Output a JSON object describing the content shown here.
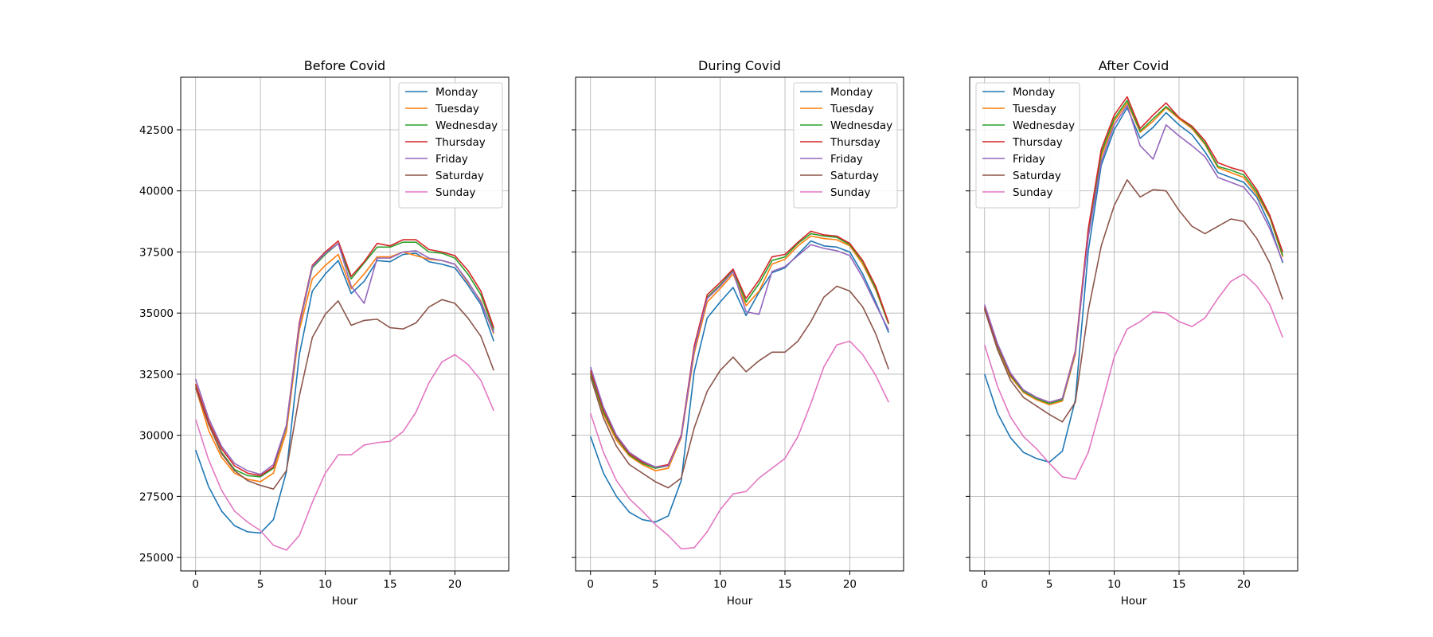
{
  "chart_data": [
    {
      "type": "line",
      "title": "Before Covid",
      "xlabel": "Hour",
      "ylabel": "",
      "xlim": [
        -1.15,
        24.15
      ],
      "ylim": [
        24450,
        44650
      ],
      "x_ticks": [
        0,
        5,
        10,
        15,
        20
      ],
      "y_ticks": [
        25000,
        27500,
        30000,
        32500,
        35000,
        37500,
        40000,
        42500
      ],
      "show_y_tick_labels": true,
      "grid": true,
      "legend_position": "upper right",
      "x": [
        0,
        1,
        2,
        3,
        4,
        5,
        6,
        7,
        8,
        9,
        10,
        11,
        12,
        13,
        14,
        15,
        16,
        17,
        18,
        19,
        20,
        21,
        22,
        23
      ],
      "series": [
        {
          "name": "Monday",
          "color": "#1f77b4",
          "values": [
            29400,
            27900,
            26900,
            26300,
            26050,
            26000,
            26550,
            28500,
            33300,
            35900,
            36600,
            37150,
            35800,
            36300,
            37150,
            37100,
            37400,
            37450,
            37100,
            37000,
            36850,
            36150,
            35350,
            33850
          ]
        },
        {
          "name": "Tuesday",
          "color": "#ff7f0e",
          "values": [
            31950,
            30200,
            29100,
            28450,
            28200,
            28100,
            28450,
            30150,
            34300,
            36400,
            36950,
            37400,
            36000,
            36600,
            37300,
            37300,
            37500,
            37350,
            37200,
            37150,
            37000,
            36250,
            35500,
            34150
          ]
        },
        {
          "name": "Wednesday",
          "color": "#2ca02c",
          "values": [
            32050,
            30450,
            29300,
            28600,
            28350,
            28300,
            28650,
            30350,
            34500,
            36850,
            37400,
            37850,
            36400,
            37050,
            37700,
            37700,
            37900,
            37900,
            37500,
            37450,
            37250,
            36600,
            35750,
            34300
          ]
        },
        {
          "name": "Thursday",
          "color": "#d62728",
          "values": [
            32100,
            30550,
            29450,
            28750,
            28450,
            28350,
            28700,
            30400,
            34600,
            36950,
            37500,
            37950,
            36500,
            37100,
            37850,
            37750,
            38000,
            38000,
            37600,
            37500,
            37350,
            36750,
            35900,
            34400
          ]
        },
        {
          "name": "Friday",
          "color": "#9467bd",
          "values": [
            32300,
            30700,
            29550,
            28850,
            28550,
            28400,
            28800,
            30400,
            34500,
            36900,
            37450,
            37850,
            36100,
            35400,
            37250,
            37250,
            37500,
            37550,
            37250,
            37150,
            37000,
            36300,
            35450,
            34200
          ]
        },
        {
          "name": "Saturday",
          "color": "#8c564b",
          "values": [
            31950,
            30450,
            29250,
            28550,
            28150,
            27950,
            27800,
            28550,
            31600,
            34000,
            34950,
            35500,
            34500,
            34700,
            34750,
            34400,
            34350,
            34600,
            35250,
            35550,
            35400,
            34800,
            34050,
            32650
          ]
        },
        {
          "name": "Sunday",
          "color": "#e377c2",
          "values": [
            30650,
            29000,
            27750,
            26900,
            26450,
            26100,
            25500,
            25300,
            25900,
            27250,
            28450,
            29200,
            29200,
            29600,
            29700,
            29750,
            30150,
            30950,
            32150,
            33000,
            33300,
            32900,
            32250,
            31000
          ]
        }
      ]
    },
    {
      "type": "line",
      "title": "During Covid",
      "xlabel": "Hour",
      "ylabel": "",
      "xlim": [
        -1.15,
        24.15
      ],
      "ylim": [
        24450,
        44650
      ],
      "x_ticks": [
        0,
        5,
        10,
        15,
        20
      ],
      "y_ticks": [
        25000,
        27500,
        30000,
        32500,
        35000,
        37500,
        40000,
        42500
      ],
      "show_y_tick_labels": false,
      "grid": true,
      "legend_position": "upper right",
      "x": [
        0,
        1,
        2,
        3,
        4,
        5,
        6,
        7,
        8,
        9,
        10,
        11,
        12,
        13,
        14,
        15,
        16,
        17,
        18,
        19,
        20,
        21,
        22,
        23
      ],
      "series": [
        {
          "name": "Monday",
          "color": "#1f77b4",
          "values": [
            29950,
            28450,
            27500,
            26850,
            26550,
            26450,
            26700,
            28150,
            32600,
            34800,
            35450,
            36050,
            34900,
            35850,
            36650,
            36850,
            37400,
            37950,
            37750,
            37700,
            37500,
            36600,
            35450,
            34200
          ]
        },
        {
          "name": "Tuesday",
          "color": "#ff7f0e",
          "values": [
            32450,
            30850,
            29800,
            29150,
            28800,
            28550,
            28650,
            29900,
            33350,
            35450,
            36000,
            36600,
            35300,
            35900,
            37000,
            37200,
            37750,
            38150,
            38050,
            38000,
            37750,
            37000,
            35950,
            34550
          ]
        },
        {
          "name": "Wednesday",
          "color": "#2ca02c",
          "values": [
            32550,
            30950,
            29900,
            29200,
            28850,
            28650,
            28750,
            30000,
            33500,
            35650,
            36150,
            36750,
            35450,
            36200,
            37150,
            37300,
            37850,
            38250,
            38150,
            38100,
            37800,
            37100,
            36000,
            34550
          ]
        },
        {
          "name": "Thursday",
          "color": "#d62728",
          "values": [
            32650,
            31050,
            29950,
            29250,
            28900,
            28700,
            28800,
            30000,
            33650,
            35750,
            36250,
            36800,
            35600,
            36350,
            37300,
            37400,
            37900,
            38350,
            38200,
            38150,
            37850,
            37150,
            36100,
            34600
          ]
        },
        {
          "name": "Friday",
          "color": "#9467bd",
          "values": [
            32800,
            31150,
            30000,
            29300,
            28950,
            28700,
            28750,
            29950,
            33500,
            35600,
            36100,
            36700,
            35050,
            34950,
            36700,
            36900,
            37350,
            37800,
            37650,
            37550,
            37350,
            36450,
            35350,
            34300
          ]
        },
        {
          "name": "Saturday",
          "color": "#8c564b",
          "values": [
            32400,
            30700,
            29550,
            28800,
            28450,
            28100,
            27850,
            28250,
            30300,
            31800,
            32650,
            33200,
            32600,
            33050,
            33400,
            33400,
            33850,
            34650,
            35650,
            36100,
            35900,
            35250,
            34150,
            32700
          ]
        },
        {
          "name": "Sunday",
          "color": "#e377c2",
          "values": [
            30900,
            29300,
            28150,
            27400,
            26900,
            26350,
            25900,
            25350,
            25400,
            26050,
            26950,
            27600,
            27700,
            28250,
            28650,
            29050,
            29950,
            31300,
            32800,
            33700,
            33850,
            33300,
            32450,
            31350
          ]
        }
      ]
    },
    {
      "type": "line",
      "title": "After Covid",
      "xlabel": "Hour",
      "ylabel": "",
      "xlim": [
        -1.15,
        24.15
      ],
      "ylim": [
        24450,
        44650
      ],
      "x_ticks": [
        0,
        5,
        10,
        15,
        20
      ],
      "y_ticks": [
        25000,
        27500,
        30000,
        32500,
        35000,
        37500,
        40000,
        42500
      ],
      "show_y_tick_labels": false,
      "grid": true,
      "legend_position": "upper left",
      "x": [
        0,
        1,
        2,
        3,
        4,
        5,
        6,
        7,
        8,
        9,
        10,
        11,
        12,
        13,
        14,
        15,
        16,
        17,
        18,
        19,
        20,
        21,
        22,
        23
      ],
      "series": [
        {
          "name": "Monday",
          "color": "#1f77b4",
          "values": [
            32500,
            30900,
            29900,
            29300,
            29050,
            28900,
            29350,
            31450,
            37550,
            41050,
            42500,
            43400,
            42150,
            42600,
            43200,
            42700,
            42300,
            41600,
            40750,
            40550,
            40350,
            39750,
            38600,
            37050
          ]
        },
        {
          "name": "Tuesday",
          "color": "#ff7f0e",
          "values": [
            35150,
            33600,
            32400,
            31750,
            31450,
            31250,
            31400,
            33300,
            38200,
            41400,
            42850,
            43600,
            42400,
            42850,
            43400,
            42950,
            42550,
            41900,
            40950,
            40750,
            40550,
            39850,
            38900,
            37300
          ]
        },
        {
          "name": "Wednesday",
          "color": "#2ca02c",
          "values": [
            35200,
            33650,
            32450,
            31800,
            31500,
            31300,
            31450,
            33400,
            38300,
            41550,
            42950,
            43700,
            42450,
            42950,
            43450,
            43000,
            42600,
            41950,
            41000,
            40850,
            40650,
            39950,
            38950,
            37350
          ]
        },
        {
          "name": "Thursday",
          "color": "#d62728",
          "values": [
            35250,
            33700,
            32500,
            31850,
            31550,
            31350,
            31500,
            33450,
            38450,
            41700,
            43100,
            43850,
            42550,
            43100,
            43600,
            43000,
            42650,
            42050,
            41150,
            40950,
            40800,
            40050,
            39000,
            37500
          ]
        },
        {
          "name": "Friday",
          "color": "#9467bd",
          "values": [
            35350,
            33750,
            32550,
            31850,
            31550,
            31350,
            31500,
            33400,
            38100,
            41200,
            42700,
            43500,
            41850,
            41300,
            42700,
            42250,
            41850,
            41400,
            40550,
            40350,
            40150,
            39500,
            38450,
            37100
          ]
        },
        {
          "name": "Saturday",
          "color": "#8c564b",
          "values": [
            35150,
            33500,
            32250,
            31550,
            31200,
            30850,
            30550,
            31350,
            35100,
            37750,
            39400,
            40450,
            39750,
            40050,
            40000,
            39200,
            38550,
            38250,
            38550,
            38850,
            38750,
            38050,
            37050,
            35550
          ]
        },
        {
          "name": "Sunday",
          "color": "#e377c2",
          "values": [
            33700,
            32000,
            30750,
            29950,
            29450,
            28850,
            28300,
            28200,
            29300,
            31200,
            33200,
            34350,
            34650,
            35050,
            35000,
            34650,
            34450,
            34800,
            35600,
            36300,
            36600,
            36100,
            35350,
            34000
          ]
        }
      ]
    }
  ]
}
